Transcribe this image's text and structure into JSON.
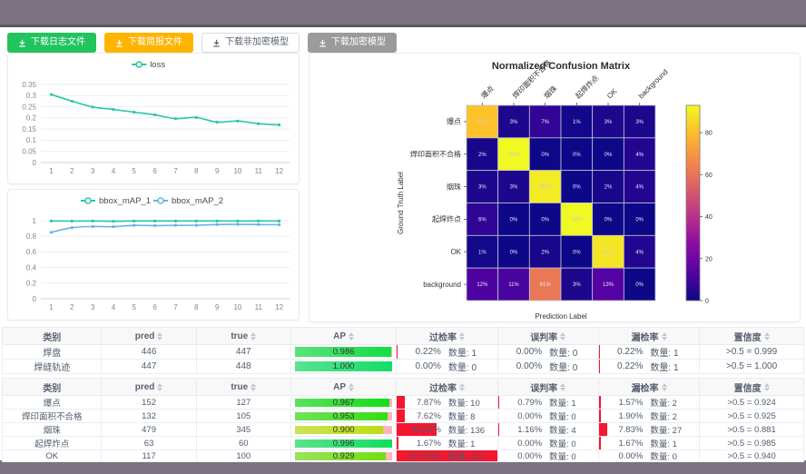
{
  "toolbar": {
    "buttons": [
      {
        "label": "下载日志文件",
        "style": "green"
      },
      {
        "label": "下载简报文件",
        "style": "orange"
      },
      {
        "label": "下载非加密模型",
        "style": "plain"
      },
      {
        "label": "下载加密模型",
        "style": "gray"
      }
    ]
  },
  "colors": {
    "teal": "#29c6a7",
    "blue": "#66b3e3",
    "rate_bar_red": "#f5162f",
    "ap_track_pink": "#ffb3bd",
    "grid": "#ebedf3",
    "axis_label": "#808695"
  },
  "chart_data": [
    {
      "type": "line",
      "title": "",
      "legend": [
        "loss"
      ],
      "x": [
        1,
        2,
        3,
        4,
        5,
        6,
        7,
        8,
        9,
        10,
        11,
        12
      ],
      "series": [
        {
          "name": "loss",
          "color": "#29c6a7",
          "values": [
            0.305,
            0.275,
            0.249,
            0.238,
            0.226,
            0.214,
            0.197,
            0.202,
            0.181,
            0.186,
            0.174,
            0.169
          ]
        }
      ],
      "ylim": [
        0,
        0.35
      ],
      "yticks": [
        0,
        0.05,
        0.1,
        0.15,
        0.2,
        0.25,
        0.3,
        0.35
      ],
      "grid": true,
      "legend_position": "top"
    },
    {
      "type": "line",
      "title": "",
      "legend": [
        "bbox_mAP_1",
        "bbox_mAP_2"
      ],
      "x": [
        1,
        2,
        3,
        4,
        5,
        6,
        7,
        8,
        9,
        10,
        11,
        12
      ],
      "series": [
        {
          "name": "bbox_mAP_1",
          "color": "#29c6a7",
          "values": [
            0.996,
            0.994,
            0.996,
            0.992,
            0.996,
            0.996,
            0.996,
            0.996,
            0.996,
            0.995,
            0.996,
            0.996
          ]
        },
        {
          "name": "bbox_mAP_2",
          "color": "#66b3e3",
          "values": [
            0.85,
            0.91,
            0.925,
            0.923,
            0.94,
            0.936,
            0.94,
            0.941,
            0.95,
            0.952,
            0.95,
            0.948
          ]
        }
      ],
      "ylim": [
        0,
        1
      ],
      "yticks": [
        0,
        0.2,
        0.4,
        0.6,
        0.8,
        1
      ],
      "grid": true,
      "legend_position": "top"
    },
    {
      "type": "heatmap",
      "title": "Normalized Confusion Matrix",
      "xlabel": "Prediction Label",
      "ylabel": "Ground Truth Label",
      "labels": [
        "爆点",
        "焊印面积不合格",
        "烟珠",
        "起焊炸点",
        "OK",
        "background"
      ],
      "matrix": [
        [
          81,
          3,
          7,
          1,
          3,
          3
        ],
        [
          2,
          93,
          0,
          0,
          0,
          4
        ],
        [
          3,
          3,
          90,
          0,
          2,
          4
        ],
        [
          6,
          0,
          0,
          93,
          0,
          0
        ],
        [
          1,
          0,
          2,
          0,
          89,
          4
        ],
        [
          12,
          11,
          61,
          3,
          13,
          0
        ]
      ],
      "cell_unit": "%",
      "scale_max": 93,
      "colorbar_ticks": [
        0,
        20,
        40,
        60,
        80
      ],
      "colormap": "plasma"
    }
  ],
  "tables": {
    "count_label": "数量:",
    "headers": [
      {
        "label": "类别",
        "sortable": false
      },
      {
        "label": "pred",
        "sortable": true
      },
      {
        "label": "true",
        "sortable": true
      },
      {
        "label": "AP",
        "sortable": true
      },
      {
        "label": "过检率",
        "sortable": true
      },
      {
        "label": "误判率",
        "sortable": true
      },
      {
        "label": "漏检率",
        "sortable": true
      },
      {
        "label": "置信度",
        "sortable": true
      }
    ],
    "table1": {
      "rows": [
        {
          "name": "焊盘",
          "pred": "446",
          "true_count": "447",
          "ap": 0.986,
          "ap_label": "0.986",
          "rates": [
            {
              "pct": "0.22%",
              "count": "1",
              "value": 0.22
            },
            {
              "pct": "0.00%",
              "count": "0",
              "value": 0
            },
            {
              "pct": "0.22%",
              "count": "1",
              "value": 0.22
            }
          ],
          "conf": ">0.5 = 0.999"
        },
        {
          "name": "焊缝轨迹",
          "pred": "447",
          "true_count": "448",
          "ap": 1.0,
          "ap_label": "1.000",
          "rates": [
            {
              "pct": "0.00%",
              "count": "0",
              "value": 0
            },
            {
              "pct": "0.00%",
              "count": "0",
              "value": 0
            },
            {
              "pct": "0.22%",
              "count": "1",
              "value": 0.22
            }
          ],
          "conf": ">0.5 = 1.000"
        }
      ]
    },
    "table2": {
      "rows": [
        {
          "name": "爆点",
          "pred": "152",
          "true_count": "127",
          "ap": 0.967,
          "ap_label": "0.967",
          "rates": [
            {
              "pct": "7.87%",
              "count": "10",
              "value": 7.87
            },
            {
              "pct": "0.79%",
              "count": "1",
              "value": 0.79
            },
            {
              "pct": "1.57%",
              "count": "2",
              "value": 1.57
            }
          ],
          "conf": ">0.5 = 0.924"
        },
        {
          "name": "焊印面积不合格",
          "pred": "132",
          "true_count": "105",
          "ap": 0.953,
          "ap_label": "0.953",
          "rates": [
            {
              "pct": "7.62%",
              "count": "8",
              "value": 7.62
            },
            {
              "pct": "0.00%",
              "count": "0",
              "value": 0
            },
            {
              "pct": "1.90%",
              "count": "2",
              "value": 1.9
            }
          ],
          "conf": ">0.5 = 0.925"
        },
        {
          "name": "烟珠",
          "pred": "479",
          "true_count": "345",
          "ap": 0.9,
          "ap_label": "0.900",
          "rates": [
            {
              "pct": "39.42%",
              "count": "136",
              "value": 39.42
            },
            {
              "pct": "1.16%",
              "count": "4",
              "value": 1.16
            },
            {
              "pct": "7.83%",
              "count": "27",
              "value": 7.83
            }
          ],
          "conf": ">0.5 = 0.881"
        },
        {
          "name": "起焊炸点",
          "pred": "63",
          "true_count": "60",
          "ap": 0.996,
          "ap_label": "0.996",
          "rates": [
            {
              "pct": "1.67%",
              "count": "1",
              "value": 1.67
            },
            {
              "pct": "0.00%",
              "count": "0",
              "value": 0
            },
            {
              "pct": "1.67%",
              "count": "1",
              "value": 1.67
            }
          ],
          "conf": ">0.5 = 0.985"
        },
        {
          "name": "OK",
          "pred": "117",
          "true_count": "100",
          "ap": 0.929,
          "ap_label": "0.929",
          "rates": [
            {
              "pct": "117.00%",
              "count": "117",
              "value": 117
            },
            {
              "pct": "0.00%",
              "count": "0",
              "value": 0
            },
            {
              "pct": "0.00%",
              "count": "0",
              "value": 0
            }
          ],
          "conf": ">0.5 = 0.940"
        }
      ]
    }
  }
}
